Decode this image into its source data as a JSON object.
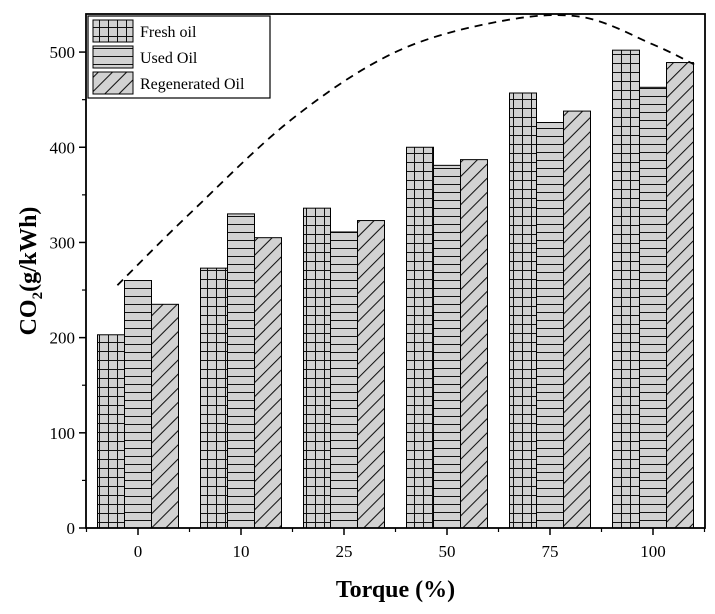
{
  "chart_data": {
    "type": "bar",
    "title": "",
    "xlabel": "Torque (%)",
    "ylabel_main": "CO",
    "ylabel_sub": "2",
    "ylabel_rest": "(g/kWh)",
    "categories": [
      "0",
      "10",
      "25",
      "50",
      "75",
      "100"
    ],
    "ylim": [
      0,
      540
    ],
    "yticks": [
      0,
      100,
      200,
      300,
      400,
      500
    ],
    "grid": false,
    "legend_position": "top-left",
    "series": [
      {
        "name": "Fresh oil",
        "pattern": "grid",
        "values": [
          203,
          273,
          336,
          400,
          457,
          502
        ]
      },
      {
        "name": "Used Oil",
        "pattern": "horizontal",
        "values": [
          260,
          330,
          311,
          381,
          426,
          463
        ]
      },
      {
        "name": "Regenerated Oil",
        "pattern": "diagonal",
        "values": [
          235,
          305,
          323,
          387,
          438,
          489
        ]
      }
    ],
    "trend_line": {
      "style": "dashed",
      "points": [
        [
          -0.2,
          255
        ],
        [
          0.5,
          330
        ],
        [
          1.5,
          430
        ],
        [
          2.5,
          500
        ],
        [
          3.5,
          532
        ],
        [
          4.3,
          537
        ],
        [
          5.0,
          508
        ],
        [
          5.4,
          487
        ]
      ]
    },
    "colors": {
      "bar_fill": "#c8c8c8",
      "stroke": "#000000"
    }
  }
}
